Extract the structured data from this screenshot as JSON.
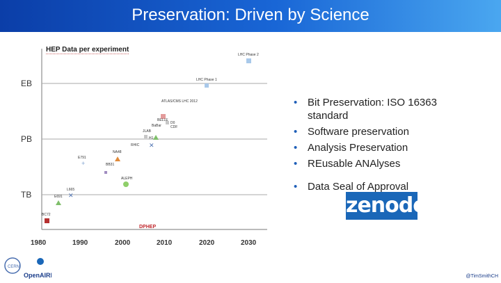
{
  "slide": {
    "title": "Preservation: Driven by Science",
    "footer_credit": "@TimSmithCH"
  },
  "chart": {
    "title": "HEP Data per experiment",
    "y_ticks": [
      "EB",
      "PB",
      "TB"
    ],
    "x_ticks": [
      "1980",
      "1990",
      "2000",
      "2010",
      "2020",
      "2030"
    ],
    "points": [
      {
        "label": "LHC Phase 2",
        "year": 2030
      },
      {
        "label": "LHC Phase 1",
        "year": 2020
      },
      {
        "label": "ATLAS/CMS LHC 2012",
        "year": 2012
      },
      {
        "label": "BELLE",
        "year": 2009
      },
      {
        "label": "CDF",
        "year": 2011
      },
      {
        "label": "BaBar",
        "year": 2008
      },
      {
        "label": "D0",
        "year": 2011
      },
      {
        "label": "JLAB",
        "year": 2007
      },
      {
        "label": "H1",
        "year": 2006
      },
      {
        "label": "RHIC",
        "year": 2005
      },
      {
        "label": "NA48",
        "year": 1999
      },
      {
        "label": "E791",
        "year": 1991
      },
      {
        "label": "BB31",
        "year": 1997
      },
      {
        "label": "ALEPH",
        "year": 2001
      },
      {
        "label": "L665",
        "year": 1987
      },
      {
        "label": "E691",
        "year": 1984
      },
      {
        "label": "BC72",
        "year": 1980
      }
    ],
    "watermark": "DPHEP"
  },
  "bullets": [
    "Bit Preservation: ISO 16363 standard",
    "Software preservation",
    "Analysis Preservation",
    "REusable ANAlyses",
    "Data Seal of Approval"
  ],
  "logos": {
    "zenodo": "zenodo",
    "openaire": "OpenAIRE",
    "cern": "CERN"
  }
}
